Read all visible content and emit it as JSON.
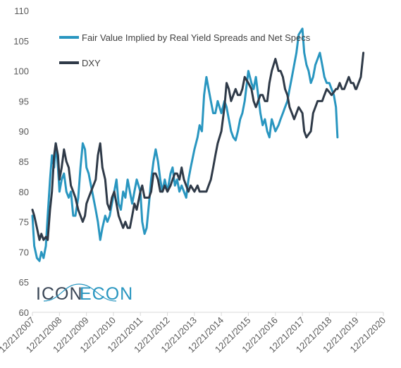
{
  "chart_data": {
    "type": "line",
    "title": "",
    "xlabel": "",
    "ylabel": "",
    "ylim": [
      60,
      110
    ],
    "yticks": [
      60,
      65,
      70,
      75,
      80,
      85,
      90,
      95,
      100,
      105,
      110
    ],
    "xlim": [
      "2007-12-21",
      "2020-12-21"
    ],
    "xticks": [
      "12/21/2007",
      "12/21/2008",
      "12/21/2009",
      "12/21/2010",
      "12/21/2011",
      "12/21/2012",
      "12/21/2013",
      "12/21/2014",
      "12/21/2015",
      "12/21/2016",
      "12/21/2017",
      "12/21/2018",
      "12/21/2019",
      "12/21/2020"
    ],
    "grid": false,
    "legend_position": "top-left",
    "series": [
      {
        "name": "Fair Value Implied by Real Yield Spreads and Net Specs",
        "color": "#2996C0",
        "points": [
          [
            "2007-12-21",
            76
          ],
          [
            "2008-01-15",
            71
          ],
          [
            "2008-02-20",
            69
          ],
          [
            "2008-03-25",
            68.5
          ],
          [
            "2008-04-20",
            70
          ],
          [
            "2008-05-20",
            69
          ],
          [
            "2008-06-20",
            71
          ],
          [
            "2008-07-15",
            76
          ],
          [
            "2008-08-15",
            82
          ],
          [
            "2008-09-10",
            86
          ],
          [
            "2008-10-10",
            84
          ],
          [
            "2008-11-01",
            88
          ],
          [
            "2008-12-01",
            84
          ],
          [
            "2008-12-21",
            80
          ],
          [
            "2009-01-20",
            82
          ],
          [
            "2009-02-20",
            83
          ],
          [
            "2009-03-25",
            80
          ],
          [
            "2009-04-25",
            79
          ],
          [
            "2009-05-25",
            80
          ],
          [
            "2009-06-25",
            76
          ],
          [
            "2009-07-25",
            76
          ],
          [
            "2009-09-01",
            79
          ],
          [
            "2009-10-01",
            84
          ],
          [
            "2009-11-01",
            88
          ],
          [
            "2009-12-01",
            87
          ],
          [
            "2009-12-21",
            84
          ],
          [
            "2010-01-20",
            83
          ],
          [
            "2010-02-20",
            81
          ],
          [
            "2010-03-25",
            79
          ],
          [
            "2010-04-25",
            77
          ],
          [
            "2010-05-25",
            75
          ],
          [
            "2010-06-25",
            72
          ],
          [
            "2010-07-25",
            74
          ],
          [
            "2010-09-01",
            76
          ],
          [
            "2010-10-01",
            75
          ],
          [
            "2010-11-01",
            76
          ],
          [
            "2010-12-01",
            78
          ],
          [
            "2011-01-01",
            80
          ],
          [
            "2011-02-01",
            82
          ],
          [
            "2011-03-01",
            78
          ],
          [
            "2011-04-01",
            77
          ],
          [
            "2011-05-01",
            80
          ],
          [
            "2011-06-01",
            79
          ],
          [
            "2011-07-01",
            82
          ],
          [
            "2011-08-01",
            80
          ],
          [
            "2011-09-01",
            78
          ],
          [
            "2011-10-01",
            80
          ],
          [
            "2011-11-01",
            82
          ],
          [
            "2011-12-21",
            80
          ],
          [
            "2012-01-15",
            75
          ],
          [
            "2012-02-15",
            73
          ],
          [
            "2012-03-15",
            74
          ],
          [
            "2012-04-15",
            78
          ],
          [
            "2012-05-15",
            82
          ],
          [
            "2012-06-15",
            85
          ],
          [
            "2012-07-15",
            87
          ],
          [
            "2012-08-15",
            85
          ],
          [
            "2012-09-15",
            82
          ],
          [
            "2012-10-15",
            80
          ],
          [
            "2012-11-15",
            82
          ],
          [
            "2012-12-21",
            80
          ],
          [
            "2013-02-01",
            83
          ],
          [
            "2013-03-01",
            84
          ],
          [
            "2013-04-01",
            81
          ],
          [
            "2013-05-01",
            82
          ],
          [
            "2013-06-01",
            80
          ],
          [
            "2013-07-01",
            81
          ],
          [
            "2013-08-01",
            80
          ],
          [
            "2013-09-01",
            79
          ],
          [
            "2013-10-01",
            82
          ],
          [
            "2013-11-01",
            84
          ],
          [
            "2013-12-21",
            87
          ],
          [
            "2014-02-01",
            89
          ],
          [
            "2014-03-01",
            91
          ],
          [
            "2014-04-01",
            90
          ],
          [
            "2014-05-01",
            96
          ],
          [
            "2014-06-01",
            99
          ],
          [
            "2014-07-01",
            97
          ],
          [
            "2014-08-01",
            95
          ],
          [
            "2014-09-01",
            93
          ],
          [
            "2014-10-01",
            93
          ],
          [
            "2014-11-01",
            95
          ],
          [
            "2014-12-21",
            93
          ],
          [
            "2015-02-01",
            95
          ],
          [
            "2015-03-01",
            94
          ],
          [
            "2015-04-01",
            92
          ],
          [
            "2015-05-01",
            90
          ],
          [
            "2015-06-01",
            89
          ],
          [
            "2015-07-01",
            88.5
          ],
          [
            "2015-08-01",
            90
          ],
          [
            "2015-09-01",
            92
          ],
          [
            "2015-10-01",
            93
          ],
          [
            "2015-11-01",
            95
          ],
          [
            "2015-12-21",
            100
          ],
          [
            "2016-02-01",
            98
          ],
          [
            "2016-03-01",
            97
          ],
          [
            "2016-04-01",
            99
          ],
          [
            "2016-05-01",
            96
          ],
          [
            "2016-06-01",
            93
          ],
          [
            "2016-07-01",
            91
          ],
          [
            "2016-08-01",
            92
          ],
          [
            "2016-09-01",
            90
          ],
          [
            "2016-10-01",
            89
          ],
          [
            "2016-11-01",
            92
          ],
          [
            "2016-12-21",
            90
          ],
          [
            "2017-02-01",
            91
          ],
          [
            "2017-03-01",
            92
          ],
          [
            "2017-04-01",
            93
          ],
          [
            "2017-05-01",
            94
          ],
          [
            "2017-06-01",
            95
          ],
          [
            "2017-07-01",
            97
          ],
          [
            "2017-08-01",
            99
          ],
          [
            "2017-09-01",
            101
          ],
          [
            "2017-10-01",
            103
          ],
          [
            "2017-11-01",
            106
          ],
          [
            "2017-12-21",
            107
          ],
          [
            "2018-01-15",
            103
          ],
          [
            "2018-02-15",
            101
          ],
          [
            "2018-03-15",
            100
          ],
          [
            "2018-04-15",
            98
          ],
          [
            "2018-05-15",
            99
          ],
          [
            "2018-06-15",
            101
          ],
          [
            "2018-07-15",
            102
          ],
          [
            "2018-08-15",
            103
          ],
          [
            "2018-09-15",
            101
          ],
          [
            "2018-10-15",
            99
          ],
          [
            "2018-11-15",
            98
          ],
          [
            "2018-12-21",
            98
          ],
          [
            "2019-01-20",
            97
          ],
          [
            "2019-02-20",
            96
          ],
          [
            "2019-03-20",
            94
          ],
          [
            "2019-04-10",
            89
          ]
        ]
      },
      {
        "name": "DXY",
        "color": "#2F3A48",
        "points": [
          [
            "2007-12-21",
            77
          ],
          [
            "2008-01-15",
            76
          ],
          [
            "2008-02-20",
            74
          ],
          [
            "2008-03-25",
            72
          ],
          [
            "2008-04-20",
            73
          ],
          [
            "2008-05-20",
            72
          ],
          [
            "2008-06-20",
            72.5
          ],
          [
            "2008-07-15",
            72
          ],
          [
            "2008-08-15",
            77
          ],
          [
            "2008-09-10",
            80
          ],
          [
            "2008-10-10",
            86
          ],
          [
            "2008-11-01",
            88
          ],
          [
            "2008-12-01",
            86
          ],
          [
            "2008-12-21",
            82
          ],
          [
            "2009-01-20",
            84
          ],
          [
            "2009-02-20",
            87
          ],
          [
            "2009-03-25",
            85
          ],
          [
            "2009-04-25",
            84
          ],
          [
            "2009-05-25",
            81
          ],
          [
            "2009-06-25",
            80
          ],
          [
            "2009-07-25",
            79
          ],
          [
            "2009-09-01",
            77
          ],
          [
            "2009-10-01",
            76
          ],
          [
            "2009-11-01",
            75
          ],
          [
            "2009-12-01",
            76
          ],
          [
            "2009-12-21",
            78
          ],
          [
            "2010-01-20",
            79
          ],
          [
            "2010-02-20",
            80
          ],
          [
            "2010-03-25",
            81
          ],
          [
            "2010-04-25",
            82
          ],
          [
            "2010-05-25",
            86
          ],
          [
            "2010-06-25",
            88
          ],
          [
            "2010-07-25",
            84
          ],
          [
            "2010-09-01",
            82
          ],
          [
            "2010-10-01",
            78
          ],
          [
            "2010-11-01",
            77
          ],
          [
            "2010-12-01",
            79
          ],
          [
            "2011-01-01",
            80
          ],
          [
            "2011-02-01",
            78
          ],
          [
            "2011-03-01",
            76
          ],
          [
            "2011-04-01",
            75
          ],
          [
            "2011-05-01",
            74
          ],
          [
            "2011-06-01",
            75
          ],
          [
            "2011-07-01",
            74
          ],
          [
            "2011-08-01",
            74
          ],
          [
            "2011-09-01",
            76
          ],
          [
            "2011-10-01",
            78
          ],
          [
            "2011-11-01",
            77
          ],
          [
            "2011-12-21",
            80
          ],
          [
            "2012-01-15",
            81
          ],
          [
            "2012-02-15",
            79
          ],
          [
            "2012-03-15",
            79
          ],
          [
            "2012-04-15",
            79
          ],
          [
            "2012-05-15",
            80
          ],
          [
            "2012-06-15",
            83
          ],
          [
            "2012-07-15",
            83
          ],
          [
            "2012-08-15",
            82
          ],
          [
            "2012-09-15",
            80
          ],
          [
            "2012-10-15",
            80
          ],
          [
            "2012-11-15",
            81
          ],
          [
            "2012-12-21",
            80
          ],
          [
            "2013-02-01",
            81
          ],
          [
            "2013-03-01",
            82
          ],
          [
            "2013-04-01",
            83
          ],
          [
            "2013-05-01",
            83
          ],
          [
            "2013-06-01",
            82
          ],
          [
            "2013-07-01",
            84
          ],
          [
            "2013-08-01",
            82
          ],
          [
            "2013-09-01",
            81
          ],
          [
            "2013-10-01",
            80
          ],
          [
            "2013-11-01",
            81
          ],
          [
            "2013-12-21",
            80
          ],
          [
            "2014-02-01",
            81
          ],
          [
            "2014-03-01",
            80
          ],
          [
            "2014-04-01",
            80
          ],
          [
            "2014-05-01",
            80
          ],
          [
            "2014-06-01",
            80
          ],
          [
            "2014-07-01",
            81
          ],
          [
            "2014-08-01",
            82
          ],
          [
            "2014-09-01",
            84
          ],
          [
            "2014-10-01",
            86
          ],
          [
            "2014-11-01",
            88
          ],
          [
            "2014-12-21",
            90
          ],
          [
            "2015-02-01",
            94
          ],
          [
            "2015-03-01",
            98
          ],
          [
            "2015-04-01",
            97
          ],
          [
            "2015-05-01",
            95
          ],
          [
            "2015-06-01",
            96
          ],
          [
            "2015-07-01",
            97
          ],
          [
            "2015-08-01",
            96
          ],
          [
            "2015-09-01",
            96
          ],
          [
            "2015-10-01",
            97
          ],
          [
            "2015-11-01",
            99
          ],
          [
            "2015-12-21",
            98
          ],
          [
            "2016-02-01",
            97
          ],
          [
            "2016-03-01",
            95
          ],
          [
            "2016-04-01",
            94
          ],
          [
            "2016-05-01",
            95
          ],
          [
            "2016-06-01",
            96
          ],
          [
            "2016-07-01",
            96
          ],
          [
            "2016-08-01",
            95
          ],
          [
            "2016-09-01",
            95
          ],
          [
            "2016-10-01",
            98
          ],
          [
            "2016-11-01",
            100
          ],
          [
            "2016-12-21",
            102
          ],
          [
            "2017-02-01",
            100
          ],
          [
            "2017-03-01",
            100
          ],
          [
            "2017-04-01",
            99
          ],
          [
            "2017-05-01",
            97
          ],
          [
            "2017-06-01",
            96
          ],
          [
            "2017-07-01",
            94
          ],
          [
            "2017-08-01",
            93
          ],
          [
            "2017-09-01",
            92
          ],
          [
            "2017-10-01",
            93
          ],
          [
            "2017-11-01",
            94
          ],
          [
            "2017-12-21",
            93
          ],
          [
            "2018-01-15",
            90
          ],
          [
            "2018-02-15",
            89
          ],
          [
            "2018-03-15",
            89.5
          ],
          [
            "2018-04-15",
            90
          ],
          [
            "2018-05-15",
            93
          ],
          [
            "2018-06-15",
            94
          ],
          [
            "2018-07-15",
            95
          ],
          [
            "2018-08-15",
            95
          ],
          [
            "2018-09-15",
            95
          ],
          [
            "2018-10-15",
            96
          ],
          [
            "2018-11-15",
            97
          ],
          [
            "2018-12-21",
            96.5
          ],
          [
            "2019-01-20",
            96
          ],
          [
            "2019-02-20",
            96.5
          ],
          [
            "2019-03-20",
            97
          ],
          [
            "2019-04-10",
            97
          ],
          [
            "2019-05-10",
            98
          ],
          [
            "2019-06-10",
            97
          ],
          [
            "2019-07-10",
            97
          ],
          [
            "2019-08-10",
            98
          ],
          [
            "2019-09-10",
            99
          ],
          [
            "2019-10-10",
            98
          ],
          [
            "2019-11-10",
            98
          ],
          [
            "2019-12-10",
            97
          ],
          [
            "2019-12-21",
            97
          ],
          [
            "2020-01-20",
            98
          ],
          [
            "2020-02-20",
            99
          ],
          [
            "2020-03-25",
            103
          ]
        ]
      }
    ]
  },
  "branding": {
    "logo_text_left": "ICON",
    "logo_text_right": "ECON",
    "logo_colors": {
      "dark": "#3A4656",
      "blue": "#2996C0"
    }
  }
}
